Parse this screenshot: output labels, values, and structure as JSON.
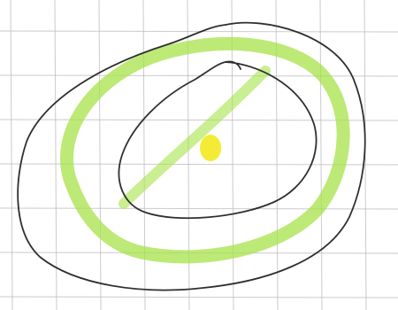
{
  "drawing": {
    "paper_color": "#ffffff",
    "grid_color": "#b9b9c2",
    "yellow_scribble_color": "#f2f22e",
    "yellow_scribble_light_color": "#f8f88a",
    "green_scribble_color": "#b4e84a",
    "green_band_color": "#a7e24a",
    "center_dot_color": "#f3ea1e",
    "outline_color": "#2f2f2f"
  }
}
